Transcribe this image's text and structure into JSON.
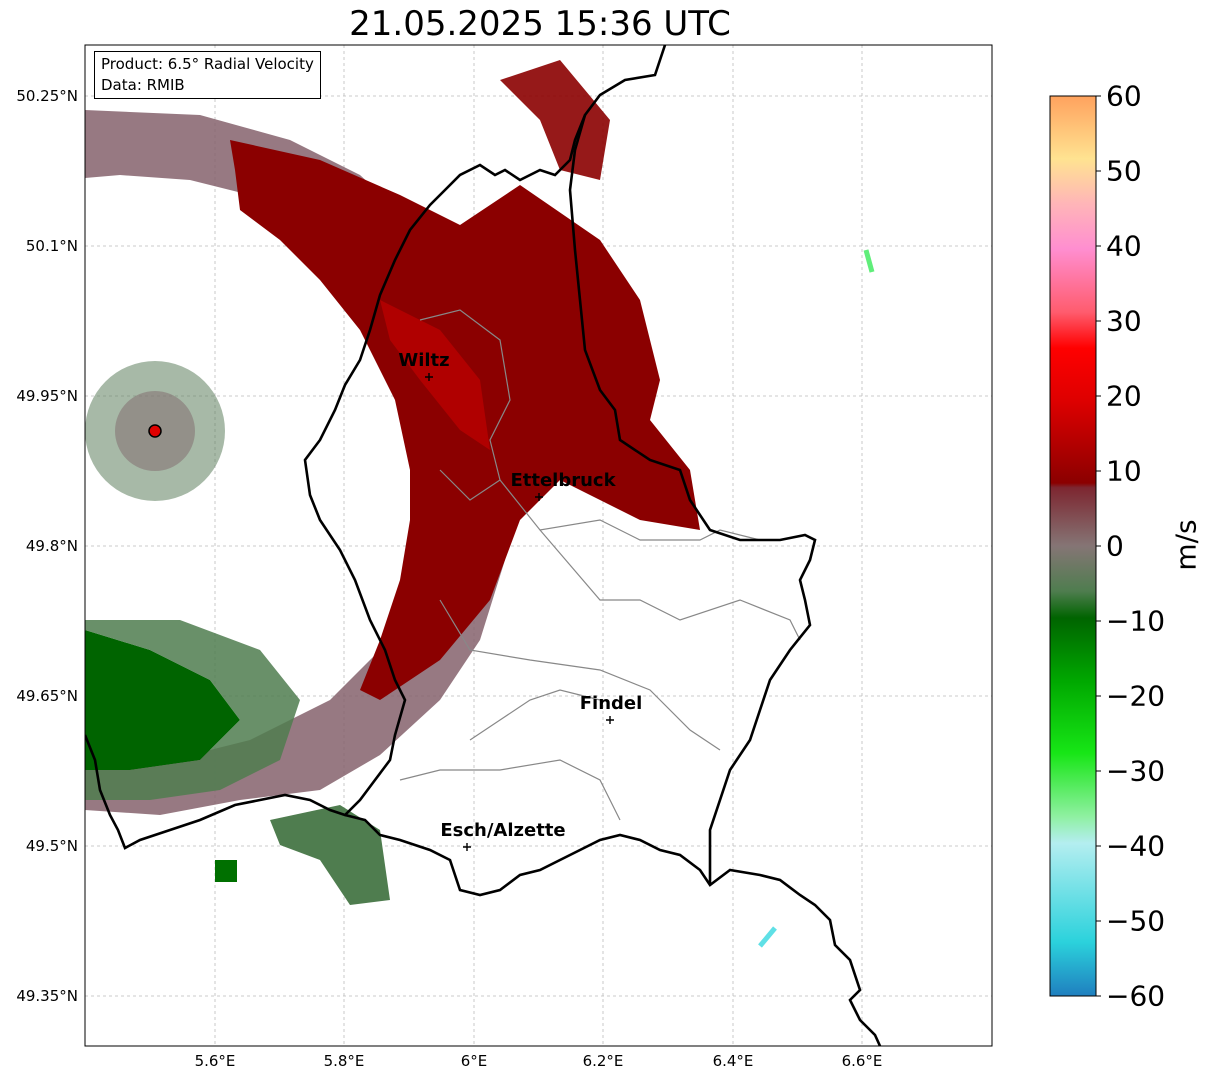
{
  "title": "21.05.2025 15:36 UTC",
  "info": {
    "product": "Product: 6.5° Radial Velocity",
    "source": "Data: RMIB"
  },
  "lat_ticks": [
    "50.25°N",
    "50.1°N",
    "49.95°N",
    "49.8°N",
    "49.65°N",
    "49.5°N",
    "49.35°N"
  ],
  "lon_ticks": [
    "5.6°E",
    "5.8°E",
    "6°E",
    "6.2°E",
    "6.4°E",
    "6.6°E"
  ],
  "cities": [
    {
      "name": "Wiltz",
      "lon": 5.93,
      "lat": 49.97
    },
    {
      "name": "Ettelbruck",
      "lon": 6.1,
      "lat": 49.85
    },
    {
      "name": "Findel",
      "lon": 6.21,
      "lat": 49.63
    },
    {
      "name": "Esch/Alzette",
      "lon": 5.99,
      "lat": 49.5
    }
  ],
  "radar_site": {
    "lon": 5.5,
    "lat": 49.92
  },
  "extent": {
    "lon": [
      5.4,
      6.8
    ],
    "lat": [
      49.3,
      50.3
    ]
  },
  "colorbar": {
    "label": "m/s",
    "ticks": [
      "60",
      "50",
      "40",
      "30",
      "20",
      "10",
      "0",
      "−10",
      "−20",
      "−30",
      "−40",
      "−50",
      "−60"
    ],
    "range": [
      -60,
      60
    ],
    "stops": [
      "#1f7fbf",
      "#2bd2dc",
      "#b4eef0",
      "#8ef0a0",
      "#17e616",
      "#00a800",
      "#006400",
      "#4f7d4f",
      "#857575",
      "#7d2630",
      "#8b0000",
      "#dd0000",
      "#ff0000",
      "#ff5c6e",
      "#ff8ed0",
      "#ffb5b8",
      "#ffe391",
      "#ffa25e"
    ]
  },
  "colors": {
    "strong_outbound": "#8b0000",
    "weak": "#85626c",
    "inbound": "#006400",
    "grid": "#bbbbbb"
  }
}
